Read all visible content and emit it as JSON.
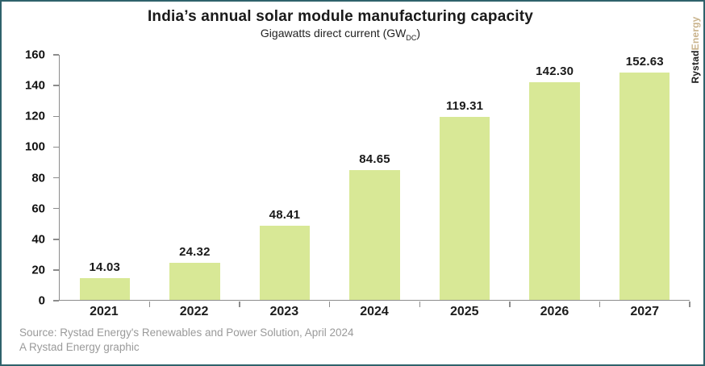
{
  "header": {
    "title": "India’s annual solar module manufacturing capacity",
    "subtitle_prefix": "Gigawatts direct current (GW",
    "subtitle_sub": "DC",
    "subtitle_suffix": ")"
  },
  "logo": {
    "part1": "Rystad",
    "part2": "Energy"
  },
  "chart_data": {
    "type": "bar",
    "title": "India’s annual solar module manufacturing capacity",
    "subtitle": "Gigawatts direct current (GW DC)",
    "categories": [
      "2021",
      "2022",
      "2023",
      "2024",
      "2025",
      "2026",
      "2027"
    ],
    "values": [
      14.03,
      24.32,
      48.41,
      84.65,
      119.31,
      142.3,
      152.63
    ],
    "value_labels": [
      "14.03",
      "24.32",
      "48.41",
      "84.65",
      "119.31",
      "142.30",
      "152.63"
    ],
    "xlabel": "",
    "ylabel": "",
    "ylim": [
      0,
      160
    ],
    "ytick_step": 20,
    "yticks": [
      0,
      20,
      40,
      60,
      80,
      100,
      120,
      140,
      160
    ],
    "grid": false,
    "legend": false,
    "bar_color": "#d8e896"
  },
  "footer": {
    "source_line1": "Source: Rystad Energy's Renewables and Power Solution, April 2024",
    "source_line2": "A Rystad Energy graphic"
  },
  "colors": {
    "border": "#2f626b",
    "bar": "#d8e896",
    "axis": "#8c8c8c",
    "text": "#1a1a1a",
    "source_text": "#9a9a9a",
    "logo_rystad": "#1a1a1a",
    "logo_energy": "#c9b38c"
  }
}
